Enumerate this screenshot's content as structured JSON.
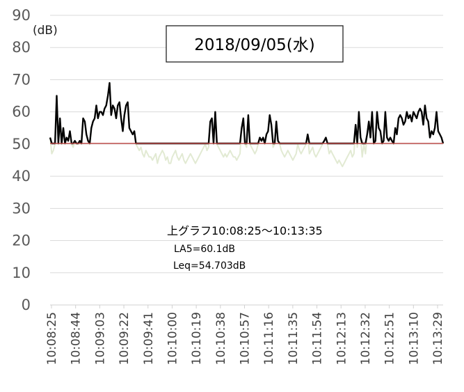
{
  "chart_data": {
    "type": "line",
    "title": "2018/09/05(水)",
    "ylabel": "(dB)",
    "xlabel": "",
    "ylim": [
      0,
      90
    ],
    "yticks": [
      0,
      10,
      20,
      30,
      40,
      50,
      60,
      70,
      80,
      90
    ],
    "x_tick_labels": [
      "10:08:25",
      "10:08:44",
      "10:09:03",
      "10:09:22",
      "10:09:41",
      "10:10:00",
      "10:10:19",
      "10:10:38",
      "10:10:57",
      "10:11:16",
      "10:11:35",
      "10:11:54",
      "10:12:13",
      "10:12:32",
      "10:12:51",
      "10:13:10",
      "10:13:29"
    ],
    "grid": "horizontal",
    "threshold": 50.2,
    "colors": {
      "above": "#000000",
      "below": "#e2ead3",
      "threshold": "#c0504d"
    },
    "annotations": {
      "range": "上グラフ10:08:25～10:13:35",
      "la5": "LA5=60.1dB",
      "leq": "Leq=54.703dB"
    },
    "x_start": "10:08:25",
    "x_end": "10:13:35",
    "series": [
      {
        "values": [
          52,
          47,
          48,
          50,
          65,
          50,
          58,
          50,
          55,
          50,
          52,
          51,
          54,
          50,
          49,
          51,
          50,
          50,
          51,
          50,
          58,
          57,
          53,
          51,
          50,
          55,
          57,
          58,
          62,
          58,
          60,
          60,
          59,
          61,
          62,
          65,
          69,
          59,
          62,
          61,
          58,
          62,
          63,
          58,
          54,
          59,
          62,
          63,
          55,
          54,
          53,
          54,
          50,
          49,
          48,
          49,
          47,
          46,
          48,
          47,
          46,
          46,
          45,
          46,
          47,
          44,
          46,
          47,
          48,
          47,
          45,
          46,
          44,
          44,
          46,
          47,
          48,
          46,
          45,
          46,
          47,
          45,
          44,
          45,
          46,
          47,
          46,
          45,
          44,
          45,
          46,
          47,
          48,
          49,
          50,
          48,
          49,
          57,
          58,
          50,
          60,
          50,
          49,
          48,
          47,
          46,
          47,
          46,
          47,
          48,
          47,
          46,
          46,
          45,
          46,
          47,
          55,
          58,
          50,
          49,
          59,
          50,
          49,
          48,
          47,
          48,
          50,
          52,
          51,
          52,
          50,
          53,
          54,
          59,
          56,
          49,
          50,
          57,
          51,
          50,
          48,
          47,
          46,
          47,
          48,
          47,
          46,
          45,
          46,
          47,
          50,
          48,
          47,
          48,
          49,
          50,
          53,
          47,
          48,
          49,
          47,
          46,
          47,
          48,
          49,
          50,
          51,
          52,
          50,
          47,
          48,
          47,
          46,
          45,
          44,
          45,
          44,
          43,
          44,
          45,
          46,
          47,
          48,
          46,
          47,
          56,
          49,
          60,
          52,
          46,
          50,
          47,
          53,
          57,
          52,
          60,
          50,
          51,
          60,
          55,
          54,
          50,
          51,
          60,
          52,
          51,
          52,
          51,
          50,
          55,
          53,
          58,
          59,
          58,
          56,
          57,
          60,
          58,
          59,
          57,
          60,
          59,
          58,
          60,
          61,
          60,
          56,
          62,
          58,
          57,
          52,
          54,
          53,
          55,
          60,
          54,
          53,
          52,
          50
        ]
      }
    ]
  }
}
